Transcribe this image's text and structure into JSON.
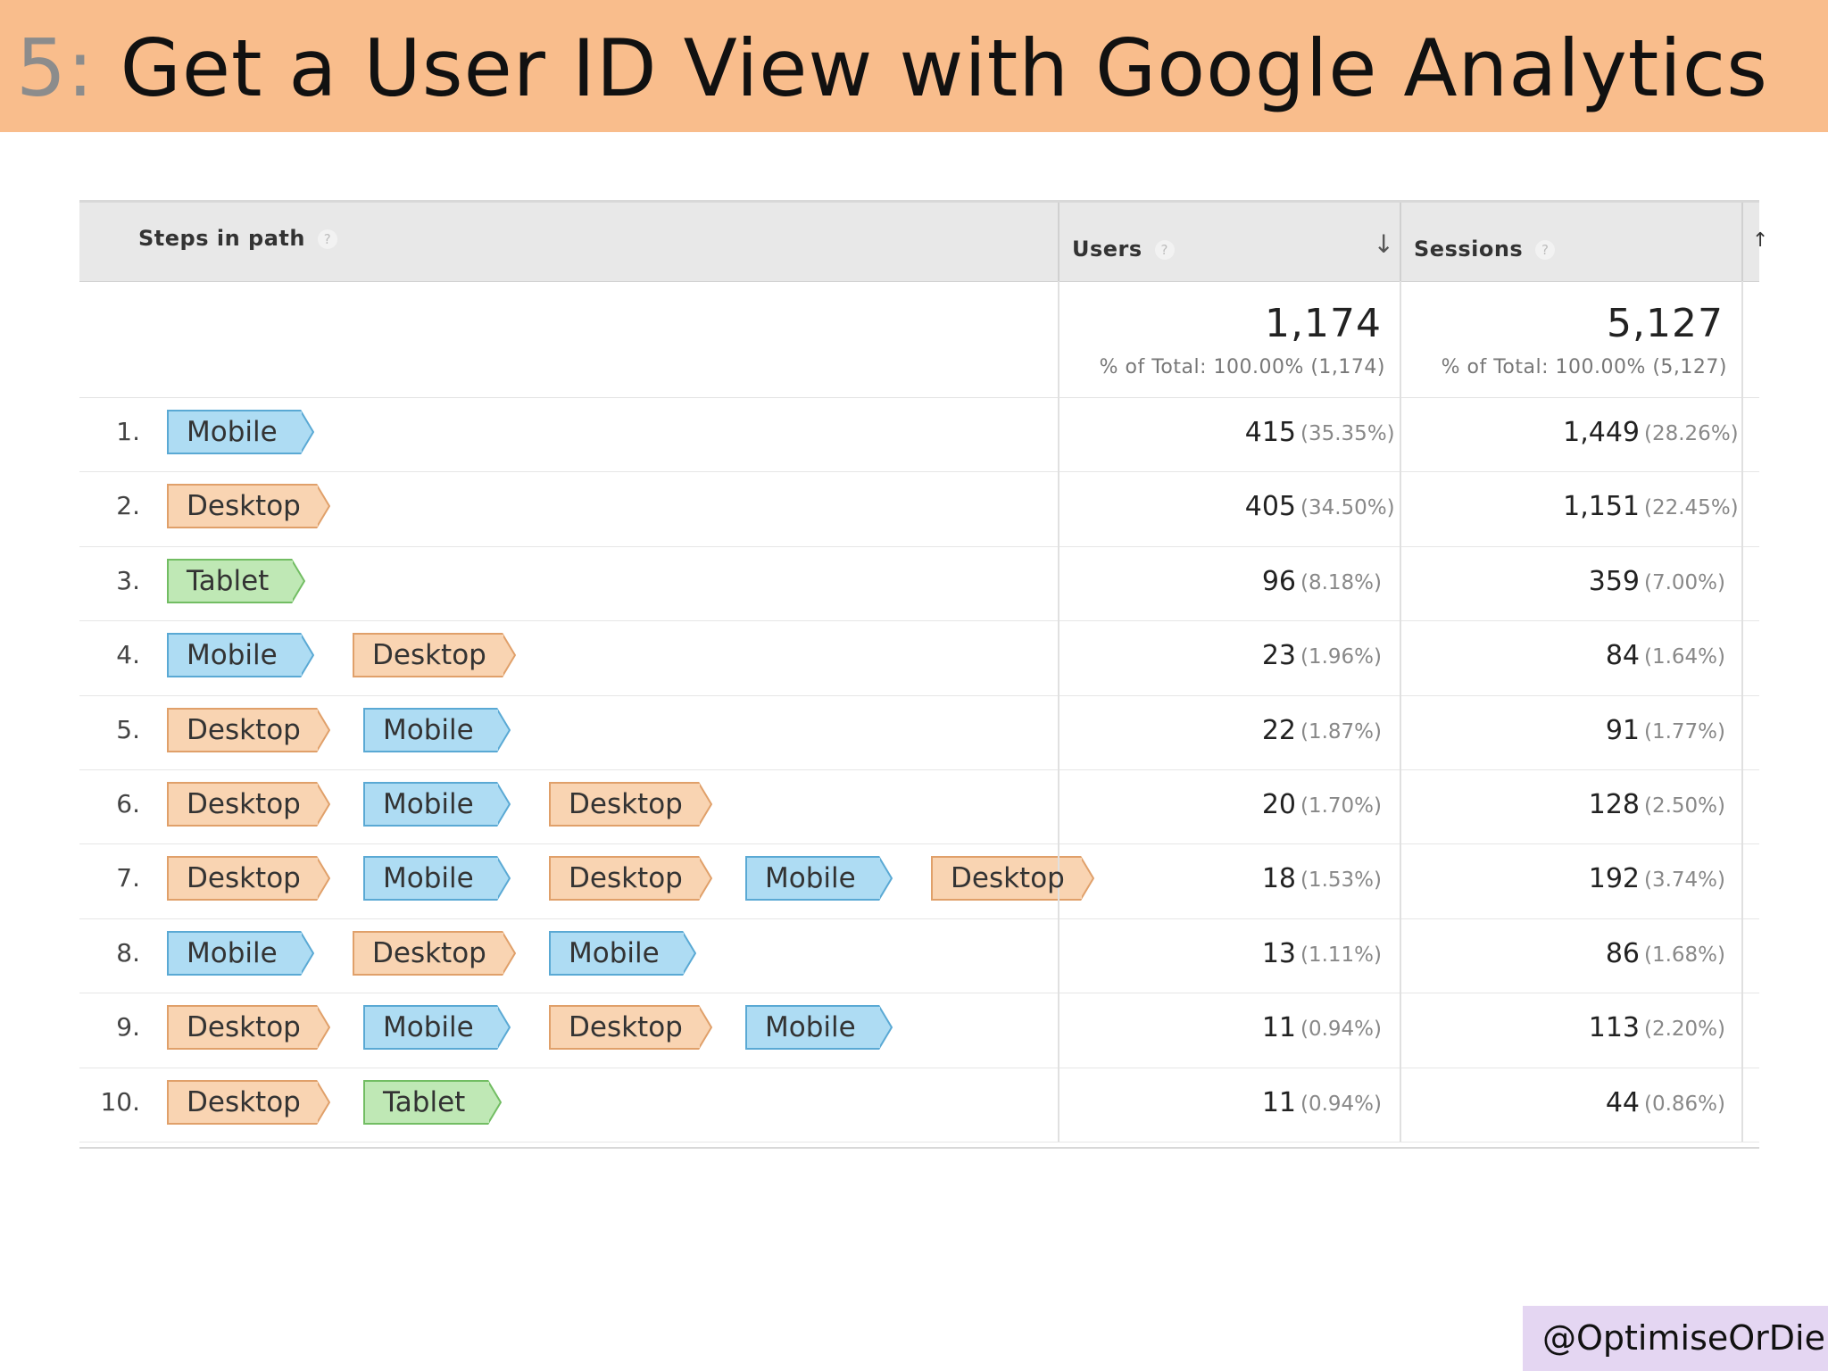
{
  "header": {
    "number": "5:",
    "title": "Get a User ID View with Google Analytics",
    "background": "#f9bd8c"
  },
  "table": {
    "columns": {
      "steps": "Steps in path",
      "users": "Users",
      "sessions": "Sessions"
    },
    "help_glyph": "?",
    "sort_indicator": "down-arrow-icon",
    "totals": {
      "users": "1,174",
      "users_sub": "% of Total: 100.00% (1,174)",
      "sessions": "5,127",
      "sessions_sub": "% of Total: 100.00% (5,127)"
    },
    "rows": [
      {
        "num": "1.",
        "steps": [
          "Mobile"
        ],
        "users": "415",
        "users_pct": "(35.35%)",
        "sessions": "1,449",
        "sessions_pct": "(28.26%)"
      },
      {
        "num": "2.",
        "steps": [
          "Desktop"
        ],
        "users": "405",
        "users_pct": "(34.50%)",
        "sessions": "1,151",
        "sessions_pct": "(22.45%)"
      },
      {
        "num": "3.",
        "steps": [
          "Tablet"
        ],
        "users": "96",
        "users_pct": "(8.18%)",
        "sessions": "359",
        "sessions_pct": "(7.00%)"
      },
      {
        "num": "4.",
        "steps": [
          "Mobile",
          "Desktop"
        ],
        "users": "23",
        "users_pct": "(1.96%)",
        "sessions": "84",
        "sessions_pct": "(1.64%)"
      },
      {
        "num": "5.",
        "steps": [
          "Desktop",
          "Mobile"
        ],
        "users": "22",
        "users_pct": "(1.87%)",
        "sessions": "91",
        "sessions_pct": "(1.77%)"
      },
      {
        "num": "6.",
        "steps": [
          "Desktop",
          "Mobile",
          "Desktop"
        ],
        "users": "20",
        "users_pct": "(1.70%)",
        "sessions": "128",
        "sessions_pct": "(2.50%)"
      },
      {
        "num": "7.",
        "steps": [
          "Desktop",
          "Mobile",
          "Desktop",
          "Mobile",
          "Desktop"
        ],
        "users": "18",
        "users_pct": "(1.53%)",
        "sessions": "192",
        "sessions_pct": "(3.74%)"
      },
      {
        "num": "8.",
        "steps": [
          "Mobile",
          "Desktop",
          "Mobile"
        ],
        "users": "13",
        "users_pct": "(1.11%)",
        "sessions": "86",
        "sessions_pct": "(1.68%)"
      },
      {
        "num": "9.",
        "steps": [
          "Desktop",
          "Mobile",
          "Desktop",
          "Mobile"
        ],
        "users": "11",
        "users_pct": "(0.94%)",
        "sessions": "113",
        "sessions_pct": "(2.20%)"
      },
      {
        "num": "10.",
        "steps": [
          "Desktop",
          "Tablet"
        ],
        "users": "11",
        "users_pct": "(0.94%)",
        "sessions": "44",
        "sessions_pct": "(0.86%)"
      }
    ],
    "chip_colors": {
      "Mobile": {
        "fill": "#aedcf3",
        "border": "#5aa9d4"
      },
      "Desktop": {
        "fill": "#f9d4b2",
        "border": "#e0a06a"
      },
      "Tablet": {
        "fill": "#bfe8b5",
        "border": "#72bd63"
      }
    }
  },
  "footer": {
    "handle": "@OptimiseOrDie",
    "background": "#e4d6f2"
  }
}
